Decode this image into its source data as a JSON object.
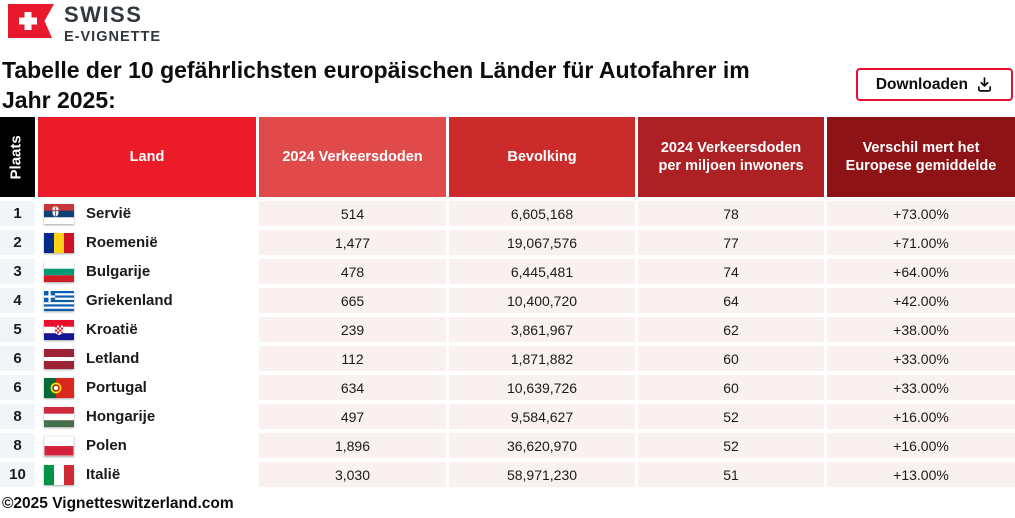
{
  "brand": {
    "line1": "SWISS",
    "line2": "E-VIGNETTE",
    "flag_color": "#E8192C"
  },
  "title": "Tabelle der 10 gefährlichsten europäischen Länder für Autofahrer im Jahr 2025:",
  "download_button": {
    "label": "Downloaden",
    "icon": "download-icon",
    "border_color": "#E8102E"
  },
  "table": {
    "columns": [
      {
        "id": "rank",
        "label": "Plaats",
        "bg": "#000000"
      },
      {
        "id": "country",
        "label": "Land",
        "bg": "#EC1B29"
      },
      {
        "id": "deaths",
        "label": "2024 Verkeersdoden",
        "bg": "#E04A4A"
      },
      {
        "id": "population",
        "label": "Bevolking",
        "bg": "#CB2B2B"
      },
      {
        "id": "per_million",
        "label": "2024 Verkeersdoden per miljoen inwoners",
        "bg": "#AD2124"
      },
      {
        "id": "diff",
        "label": "Verschil mert het Europese gemiddelde",
        "bg": "#8E1317"
      }
    ],
    "rows": [
      {
        "rank": "1",
        "country": "Servië",
        "flag": "flag-serbia",
        "deaths": "514",
        "population": "6,605,168",
        "per_million": "78",
        "diff": "+73.00%"
      },
      {
        "rank": "2",
        "country": "Roemenië",
        "flag": "flag-romania",
        "deaths": "1,477",
        "population": "19,067,576",
        "per_million": "77",
        "diff": "+71.00%"
      },
      {
        "rank": "3",
        "country": "Bulgarije",
        "flag": "flag-bulgaria",
        "deaths": "478",
        "population": "6,445,481",
        "per_million": "74",
        "diff": "+64.00%"
      },
      {
        "rank": "4",
        "country": "Griekenland",
        "flag": "flag-greece",
        "deaths": "665",
        "population": "10,400,720",
        "per_million": "64",
        "diff": "+42.00%"
      },
      {
        "rank": "5",
        "country": "Kroatië",
        "flag": "flag-croatia",
        "deaths": "239",
        "population": "3,861,967",
        "per_million": "62",
        "diff": "+38.00%"
      },
      {
        "rank": "6",
        "country": "Letland",
        "flag": "flag-latvia",
        "deaths": "112",
        "population": "1,871,882",
        "per_million": "60",
        "diff": "+33.00%"
      },
      {
        "rank": "6",
        "country": "Portugal",
        "flag": "flag-portugal",
        "deaths": "634",
        "population": "10,639,726",
        "per_million": "60",
        "diff": "+33.00%"
      },
      {
        "rank": "8",
        "country": "Hongarije",
        "flag": "flag-hungary",
        "deaths": "497",
        "population": "9,584,627",
        "per_million": "52",
        "diff": "+16.00%"
      },
      {
        "rank": "8",
        "country": "Polen",
        "flag": "flag-poland",
        "deaths": "1,896",
        "population": "36,620,970",
        "per_million": "52",
        "diff": "+16.00%"
      },
      {
        "rank": "10",
        "country": "Italië",
        "flag": "flag-italy",
        "deaths": "3,030",
        "population": "58,971,230",
        "per_million": "51",
        "diff": "+13.00%"
      }
    ]
  },
  "footer": "©2025 Vignetteswitzerland.com"
}
